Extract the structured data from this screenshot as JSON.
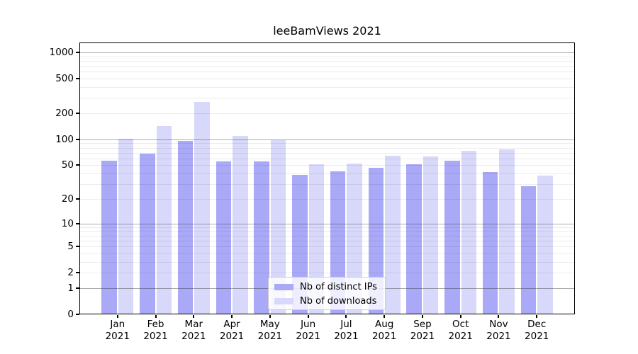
{
  "chart_data": {
    "type": "bar",
    "title": "leeBamViews 2021",
    "categories": [
      "Jan 2021",
      "Feb 2021",
      "Mar 2021",
      "Apr 2021",
      "May 2021",
      "Jun 2021",
      "Jul 2021",
      "Aug 2021",
      "Sep 2021",
      "Oct 2021",
      "Nov 2021",
      "Dec 2021"
    ],
    "series": [
      {
        "name": "Nb of distinct IPs",
        "color": "#a9a9f7",
        "values": [
          55,
          67,
          95,
          54,
          54,
          38,
          42,
          46,
          50,
          56,
          41,
          28
        ]
      },
      {
        "name": "Nb of downloads",
        "color": "#d8d8fa",
        "values": [
          100,
          140,
          265,
          108,
          96,
          50,
          51,
          63,
          62,
          73,
          75,
          37
        ]
      }
    ],
    "xlabel": "",
    "ylabel": "",
    "yscale": "log1p",
    "y_ticks": [
      1000,
      500,
      200,
      100,
      50,
      20,
      10,
      5,
      2,
      1,
      0
    ],
    "ylim": [
      0,
      1300
    ],
    "grid": "both",
    "legend_position": "lower center"
  }
}
